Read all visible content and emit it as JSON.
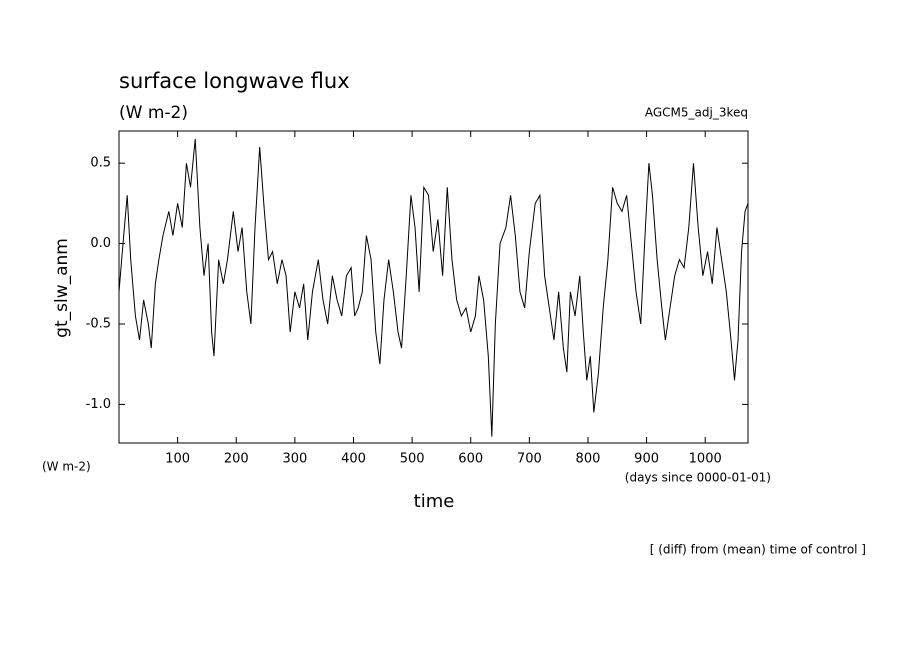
{
  "chart_data": {
    "type": "line",
    "title": "surface longwave flux",
    "subtitle": "(W m-2)",
    "experiment": "AGCM5_adj_3keq",
    "y_label": "gt_slw_anm",
    "y_units": "(W m-2)",
    "x_label": "time",
    "x_units": "(days since 0000-01-01)",
    "footnote": "[ (diff) from (mean) time of control ]",
    "xlim": [
      0,
      1073
    ],
    "ylim": [
      -1.24,
      0.7
    ],
    "xticks": [
      100,
      200,
      300,
      400,
      500,
      600,
      700,
      800,
      900,
      1000
    ],
    "yticks": [
      0.5,
      {
        "value": 0,
        "label": "0.0"
      },
      -0.5,
      {
        "value": -1,
        "label": "-1.0"
      }
    ],
    "x": [
      0,
      8,
      14,
      20,
      28,
      35,
      42,
      50,
      55,
      62,
      68,
      75,
      85,
      92,
      100,
      108,
      115,
      122,
      130,
      138,
      145,
      152,
      158,
      162,
      170,
      178,
      185,
      195,
      203,
      210,
      218,
      225,
      232,
      240,
      248,
      255,
      262,
      270,
      278,
      285,
      292,
      300,
      308,
      315,
      322,
      330,
      340,
      348,
      356,
      364,
      372,
      380,
      388,
      396,
      402,
      408,
      415,
      422,
      430,
      438,
      445,
      452,
      460,
      468,
      476,
      482,
      490,
      498,
      505,
      512,
      520,
      528,
      536,
      544,
      552,
      560,
      568,
      576,
      584,
      592,
      600,
      608,
      614,
      622,
      630,
      636,
      642,
      650,
      660,
      668,
      676,
      684,
      692,
      700,
      710,
      718,
      726,
      734,
      742,
      750,
      758,
      764,
      770,
      778,
      786,
      792,
      798,
      804,
      810,
      818,
      826,
      834,
      842,
      850,
      858,
      866,
      874,
      882,
      890,
      898,
      904,
      910,
      918,
      926,
      932,
      940,
      948,
      956,
      964,
      972,
      980,
      988,
      996,
      1004,
      1012,
      1020,
      1028,
      1036,
      1044,
      1050,
      1056,
      1062,
      1068,
      1073
    ],
    "series": [
      {
        "color": "#000000",
        "values": [
          -0.3,
          0.05,
          0.3,
          -0.1,
          -0.45,
          -0.6,
          -0.35,
          -0.5,
          -0.65,
          -0.25,
          -0.1,
          0.05,
          0.2,
          0.05,
          0.25,
          0.1,
          0.5,
          0.35,
          0.65,
          0.1,
          -0.2,
          0.0,
          -0.55,
          -0.7,
          -0.1,
          -0.25,
          -0.1,
          0.2,
          -0.05,
          0.1,
          -0.3,
          -0.5,
          0.1,
          0.6,
          0.2,
          -0.1,
          -0.05,
          -0.25,
          -0.1,
          -0.2,
          -0.55,
          -0.3,
          -0.4,
          -0.25,
          -0.6,
          -0.3,
          -0.1,
          -0.35,
          -0.5,
          -0.2,
          -0.35,
          -0.45,
          -0.2,
          -0.15,
          -0.45,
          -0.4,
          -0.3,
          0.05,
          -0.1,
          -0.55,
          -0.75,
          -0.35,
          -0.1,
          -0.3,
          -0.55,
          -0.65,
          -0.2,
          0.3,
          0.1,
          -0.3,
          0.35,
          0.3,
          -0.05,
          0.15,
          -0.2,
          0.35,
          -0.1,
          -0.35,
          -0.45,
          -0.4,
          -0.55,
          -0.45,
          -0.2,
          -0.35,
          -0.7,
          -1.2,
          -0.5,
          0.0,
          0.1,
          0.3,
          0.05,
          -0.3,
          -0.4,
          -0.05,
          0.25,
          0.3,
          -0.2,
          -0.4,
          -0.6,
          -0.3,
          -0.65,
          -0.8,
          -0.3,
          -0.45,
          -0.2,
          -0.55,
          -0.85,
          -0.7,
          -1.05,
          -0.8,
          -0.4,
          -0.1,
          0.35,
          0.25,
          0.2,
          0.3,
          0.0,
          -0.3,
          -0.5,
          0.1,
          0.5,
          0.3,
          -0.1,
          -0.4,
          -0.6,
          -0.4,
          -0.2,
          -0.1,
          -0.15,
          0.1,
          0.5,
          0.1,
          -0.2,
          -0.05,
          -0.25,
          0.1,
          -0.1,
          -0.3,
          -0.6,
          -0.85,
          -0.6,
          -0.05,
          0.2,
          0.25
        ]
      }
    ]
  }
}
